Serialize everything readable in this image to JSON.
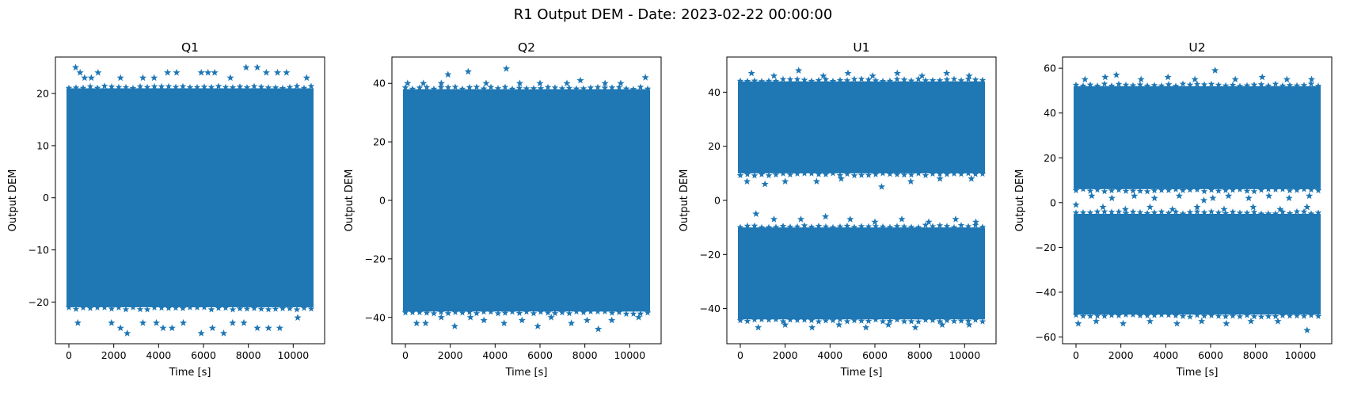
{
  "figure": {
    "suptitle": "R1 Output DEM - Date: 2023-02-22 00:00:00",
    "marker_color": "#1f77b4",
    "marker": "star"
  },
  "chart_data": [
    {
      "type": "scatter",
      "title": "Q1",
      "xlabel": "Time [s]",
      "ylabel": "Output DEM",
      "xlim": [
        -600,
        11400
      ],
      "ylim": [
        -28,
        27
      ],
      "xticks": [
        0,
        2000,
        4000,
        6000,
        8000,
        10000
      ],
      "yticks": [
        -20,
        -10,
        0,
        10,
        20
      ],
      "x_range": [
        0,
        10800
      ],
      "bands": [
        [
          -21,
          21
        ]
      ],
      "outliers": [
        [
          300,
          25
        ],
        [
          500,
          24
        ],
        [
          700,
          23
        ],
        [
          1000,
          23
        ],
        [
          1300,
          24
        ],
        [
          2300,
          23
        ],
        [
          3300,
          23
        ],
        [
          3800,
          23
        ],
        [
          4400,
          24
        ],
        [
          4800,
          24
        ],
        [
          5900,
          24
        ],
        [
          6200,
          24
        ],
        [
          6500,
          24
        ],
        [
          7200,
          23
        ],
        [
          7900,
          25
        ],
        [
          8400,
          25
        ],
        [
          8800,
          24
        ],
        [
          9300,
          24
        ],
        [
          9700,
          24
        ],
        [
          10600,
          23
        ],
        [
          400,
          -24
        ],
        [
          1900,
          -24
        ],
        [
          2300,
          -25
        ],
        [
          2600,
          -26
        ],
        [
          3300,
          -24
        ],
        [
          3900,
          -24
        ],
        [
          4200,
          -25
        ],
        [
          4600,
          -25
        ],
        [
          5100,
          -24
        ],
        [
          5900,
          -26
        ],
        [
          6400,
          -25
        ],
        [
          6900,
          -26
        ],
        [
          7300,
          -24
        ],
        [
          7800,
          -24
        ],
        [
          8400,
          -25
        ],
        [
          8900,
          -25
        ],
        [
          9400,
          -25
        ],
        [
          10200,
          -23
        ]
      ]
    },
    {
      "type": "scatter",
      "title": "Q2",
      "xlabel": "Time [s]",
      "ylabel": "Output DEM",
      "xlim": [
        -600,
        11400
      ],
      "ylim": [
        -49,
        49
      ],
      "xticks": [
        0,
        2000,
        4000,
        6000,
        8000,
        10000
      ],
      "yticks": [
        -40,
        -20,
        0,
        20,
        40
      ],
      "x_range": [
        0,
        10800
      ],
      "bands": [
        [
          -38,
          38
        ]
      ],
      "outliers": [
        [
          100,
          40
        ],
        [
          800,
          40
        ],
        [
          1600,
          40
        ],
        [
          1900,
          43
        ],
        [
          2800,
          44
        ],
        [
          3600,
          40
        ],
        [
          4500,
          45
        ],
        [
          5100,
          40
        ],
        [
          6000,
          40
        ],
        [
          7200,
          40
        ],
        [
          7800,
          41
        ],
        [
          8900,
          40
        ],
        [
          9600,
          40
        ],
        [
          10700,
          42
        ],
        [
          500,
          -42
        ],
        [
          900,
          -42
        ],
        [
          1600,
          -40
        ],
        [
          2200,
          -43
        ],
        [
          2900,
          -40
        ],
        [
          3500,
          -41
        ],
        [
          4400,
          -42
        ],
        [
          5200,
          -41
        ],
        [
          5900,
          -43
        ],
        [
          6500,
          -40
        ],
        [
          7400,
          -42
        ],
        [
          8100,
          -41
        ],
        [
          8600,
          -44
        ],
        [
          9200,
          -41
        ],
        [
          10400,
          -40
        ]
      ]
    },
    {
      "type": "scatter",
      "title": "U1",
      "xlabel": "Time [s]",
      "ylabel": "Output DEM",
      "xlim": [
        -600,
        11400
      ],
      "ylim": [
        -53,
        53
      ],
      "xticks": [
        0,
        2000,
        4000,
        6000,
        8000,
        10000
      ],
      "yticks": [
        -40,
        -20,
        0,
        20,
        40
      ],
      "x_range": [
        0,
        10800
      ],
      "bands": [
        [
          10,
          44
        ],
        [
          -44,
          -10
        ]
      ],
      "outliers": [
        [
          500,
          47
        ],
        [
          1500,
          46
        ],
        [
          2600,
          48
        ],
        [
          3700,
          46
        ],
        [
          4800,
          47
        ],
        [
          5900,
          46
        ],
        [
          7000,
          47
        ],
        [
          8100,
          46
        ],
        [
          9200,
          47
        ],
        [
          10200,
          46
        ],
        [
          300,
          7
        ],
        [
          1100,
          6
        ],
        [
          2000,
          7
        ],
        [
          3400,
          7
        ],
        [
          4500,
          8
        ],
        [
          6300,
          5
        ],
        [
          7600,
          7
        ],
        [
          8900,
          8
        ],
        [
          10300,
          8
        ],
        [
          700,
          -5
        ],
        [
          1500,
          -7
        ],
        [
          2700,
          -7
        ],
        [
          3800,
          -6
        ],
        [
          4900,
          -7
        ],
        [
          6000,
          -8
        ],
        [
          7200,
          -7
        ],
        [
          8400,
          -8
        ],
        [
          9600,
          -7
        ],
        [
          10500,
          -8
        ],
        [
          800,
          -47
        ],
        [
          2000,
          -46
        ],
        [
          3200,
          -47
        ],
        [
          4400,
          -46
        ],
        [
          5600,
          -47
        ],
        [
          6600,
          -46
        ],
        [
          7800,
          -47
        ],
        [
          9000,
          -46
        ],
        [
          10200,
          -46
        ]
      ]
    },
    {
      "type": "scatter",
      "title": "U2",
      "xlabel": "Time [s]",
      "ylabel": "Output DEM",
      "xlim": [
        -600,
        11400
      ],
      "ylim": [
        -63,
        65
      ],
      "xticks": [
        0,
        2000,
        4000,
        6000,
        8000,
        10000
      ],
      "yticks": [
        -60,
        -40,
        -20,
        0,
        20,
        40,
        60
      ],
      "x_range": [
        0,
        10800
      ],
      "bands": [
        [
          6,
          52
        ],
        [
          -50,
          -5
        ]
      ],
      "outliers": [
        [
          400,
          55
        ],
        [
          1300,
          56
        ],
        [
          1800,
          57
        ],
        [
          2900,
          55
        ],
        [
          4100,
          56
        ],
        [
          5300,
          55
        ],
        [
          6200,
          59
        ],
        [
          7100,
          55
        ],
        [
          8300,
          56
        ],
        [
          9400,
          55
        ],
        [
          10500,
          55
        ],
        [
          700,
          3
        ],
        [
          1600,
          2
        ],
        [
          2600,
          3
        ],
        [
          3500,
          2
        ],
        [
          4600,
          3
        ],
        [
          5700,
          1
        ],
        [
          6100,
          2
        ],
        [
          6800,
          3
        ],
        [
          7700,
          2
        ],
        [
          8600,
          3
        ],
        [
          9500,
          2
        ],
        [
          10400,
          3
        ],
        [
          0,
          -1
        ],
        [
          1200,
          -2
        ],
        [
          2200,
          -3
        ],
        [
          3300,
          -2
        ],
        [
          4300,
          -3
        ],
        [
          5400,
          -2
        ],
        [
          6600,
          -3
        ],
        [
          7900,
          -2
        ],
        [
          9100,
          -3
        ],
        [
          10300,
          -2
        ],
        [
          100,
          -54
        ],
        [
          900,
          -53
        ],
        [
          2100,
          -54
        ],
        [
          3300,
          -53
        ],
        [
          4500,
          -54
        ],
        [
          5600,
          -53
        ],
        [
          6700,
          -54
        ],
        [
          7800,
          -53
        ],
        [
          9000,
          -53
        ],
        [
          10300,
          -57
        ]
      ]
    }
  ]
}
